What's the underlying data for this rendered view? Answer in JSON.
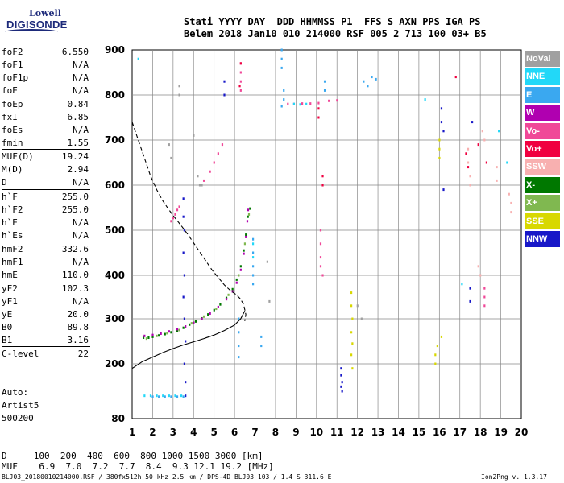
{
  "logo": {
    "line1": "Lowell",
    "line2": "DIGISONDE"
  },
  "header": {
    "row1": "Stati YYYY DAY  DDD HHMMSS P1  FFS S AXN PPS IGA PS",
    "row2": "Belem 2018 Jan10 010 214000 RSF 005 2 713 100 03+ B5"
  },
  "params_group1": [
    {
      "label": "foF2",
      "value": "6.550"
    },
    {
      "label": "foF1",
      "value": "N/A"
    },
    {
      "label": "foF1p",
      "value": "N/A"
    },
    {
      "label": "foE",
      "value": "N/A"
    },
    {
      "label": "foEp",
      "value": "0.84"
    },
    {
      "label": "fxI",
      "value": "6.85"
    },
    {
      "label": "foEs",
      "value": "N/A"
    },
    {
      "label": "fmin",
      "value": "1.55"
    }
  ],
  "params_group2": [
    {
      "label": "MUF(D)",
      "value": "19.24"
    },
    {
      "label": "M(D)",
      "value": "2.94"
    },
    {
      "label": "D",
      "value": "N/A"
    }
  ],
  "params_group3": [
    {
      "label": "h`F",
      "value": "255.0"
    },
    {
      "label": "h`F2",
      "value": "255.0"
    },
    {
      "label": "h`E",
      "value": "N/A"
    },
    {
      "label": "h`Es",
      "value": "N/A"
    }
  ],
  "params_group4": [
    {
      "label": "hmF2",
      "value": "332.6"
    },
    {
      "label": "hmF1",
      "value": "N/A"
    },
    {
      "label": "hmE",
      "value": "110.0"
    },
    {
      "label": "yF2",
      "value": "102.3"
    },
    {
      "label": "yF1",
      "value": "N/A"
    },
    {
      "label": "yE",
      "value": "20.0"
    },
    {
      "label": "B0",
      "value": "89.8"
    },
    {
      "label": "B1",
      "value": "3.16"
    }
  ],
  "clevel": {
    "label": "C-level",
    "value": "22"
  },
  "auto": {
    "line1": "Auto:",
    "line2": "Artist5",
    "line3": "500200"
  },
  "legend": [
    {
      "label": "NoVal",
      "color": "#a0a0a0"
    },
    {
      "label": "NNE",
      "color": "#22d8f8"
    },
    {
      "label": "E",
      "color": "#3aa8f0"
    },
    {
      "label": "W",
      "color": "#b000b0"
    },
    {
      "label": "Vo-",
      "color": "#f04898"
    },
    {
      "label": "Vo+",
      "color": "#f00040"
    },
    {
      "label": "SSW",
      "color": "#f8b0b0"
    },
    {
      "label": "X-",
      "color": "#007800"
    },
    {
      "label": "X+",
      "color": "#80b850"
    },
    {
      "label": "SSE",
      "color": "#d8d800"
    },
    {
      "label": "NNW",
      "color": "#1818c8"
    }
  ],
  "bottom_table": {
    "d_row": "D     100  200  400  600  800 1000 1500 3000 [km]",
    "muf_row": "MUF    6.9  7.0  7.2  7.7  8.4  9.3 12.1 19.2 [MHz]"
  },
  "footer": {
    "left": "BLJ03_20180010214000.RSF / 380fx512h 50 kHz 2.5 km / DPS-4D BLJ03 103 / 1.4 S 311.6 E",
    "right": "Ion2Png v. 1.3.17"
  },
  "chart_data": {
    "type": "scatter",
    "title": "",
    "xlabel": "",
    "ylabel": "",
    "xlim": [
      1,
      20
    ],
    "ylim": [
      80,
      900
    ],
    "x_ticks": [
      "1",
      "2",
      "3",
      "4",
      "5",
      "6",
      "7",
      "8",
      "9",
      "10",
      "11",
      "12",
      "13",
      "14",
      "15",
      "16",
      "17",
      "18",
      "19",
      "20"
    ],
    "y_ticks": [
      "80",
      "200",
      "300",
      "400",
      "500",
      "600",
      "700",
      "800",
      "900"
    ],
    "y_tick_values": [
      80,
      200,
      300,
      400,
      500,
      600,
      700,
      800,
      900
    ],
    "grid": true,
    "series": [
      {
        "color": "#007800",
        "points": [
          [
            1.55,
            258
          ],
          [
            1.8,
            258
          ],
          [
            2.0,
            260
          ],
          [
            2.3,
            263
          ],
          [
            2.6,
            266
          ],
          [
            2.9,
            270
          ],
          [
            3.2,
            274
          ],
          [
            3.5,
            280
          ],
          [
            3.8,
            287
          ],
          [
            4.1,
            294
          ],
          [
            4.4,
            301
          ],
          [
            4.7,
            310
          ],
          [
            5.0,
            320
          ],
          [
            5.3,
            333
          ],
          [
            5.6,
            348
          ],
          [
            5.9,
            368
          ],
          [
            6.1,
            390
          ],
          [
            6.3,
            420
          ],
          [
            6.45,
            455
          ],
          [
            6.55,
            490
          ],
          [
            6.65,
            530
          ],
          [
            6.75,
            548
          ]
        ]
      },
      {
        "color": "#b000b0",
        "points": [
          [
            1.6,
            262
          ],
          [
            2.0,
            264
          ],
          [
            2.4,
            267
          ],
          [
            2.8,
            272
          ],
          [
            3.2,
            277
          ],
          [
            3.6,
            283
          ],
          [
            4.0,
            291
          ],
          [
            4.4,
            300
          ],
          [
            4.8,
            312
          ],
          [
            5.2,
            327
          ],
          [
            5.6,
            345
          ],
          [
            5.9,
            363
          ],
          [
            6.1,
            383
          ],
          [
            6.3,
            412
          ],
          [
            6.45,
            448
          ],
          [
            6.55,
            485
          ],
          [
            6.62,
            520
          ],
          [
            6.66,
            545
          ]
        ]
      },
      {
        "color": "#80b850",
        "points": [
          [
            1.7,
            256
          ],
          [
            2.2,
            262
          ],
          [
            2.7,
            268
          ],
          [
            3.3,
            275
          ],
          [
            3.9,
            290
          ],
          [
            4.5,
            305
          ],
          [
            5.1,
            323
          ],
          [
            5.7,
            355
          ],
          [
            6.2,
            400
          ],
          [
            6.5,
            470
          ],
          [
            6.7,
            535
          ]
        ]
      },
      {
        "color": "#f04898",
        "points": [
          [
            2.9,
            520
          ],
          [
            3.0,
            527
          ],
          [
            3.1,
            535
          ],
          [
            3.2,
            545
          ],
          [
            3.3,
            552
          ],
          [
            4.5,
            610
          ],
          [
            4.8,
            630
          ],
          [
            5.0,
            650
          ],
          [
            5.2,
            670
          ],
          [
            5.4,
            690
          ],
          [
            8.6,
            780
          ],
          [
            8.9,
            780
          ],
          [
            9.3,
            781
          ],
          [
            9.7,
            781
          ],
          [
            10.1,
            782
          ],
          [
            10.6,
            787
          ],
          [
            11.0,
            788
          ],
          [
            6.3,
            870
          ],
          [
            6.3,
            850
          ],
          [
            6.3,
            830
          ],
          [
            6.3,
            810
          ],
          [
            10.2,
            500
          ],
          [
            10.2,
            470
          ],
          [
            10.2,
            440
          ],
          [
            10.2,
            420
          ],
          [
            10.3,
            400
          ],
          [
            18.2,
            370
          ],
          [
            18.2,
            350
          ],
          [
            18.2,
            330
          ]
        ]
      },
      {
        "color": "#3aa8f0",
        "points": [
          [
            2.0,
            128
          ],
          [
            2.3,
            128
          ],
          [
            2.6,
            128
          ],
          [
            2.9,
            128
          ],
          [
            3.2,
            128
          ],
          [
            3.5,
            128
          ],
          [
            6.9,
            480
          ],
          [
            6.9,
            450
          ],
          [
            6.9,
            420
          ],
          [
            6.9,
            400
          ],
          [
            6.9,
            380
          ],
          [
            6.2,
            300
          ],
          [
            6.2,
            270
          ],
          [
            6.2,
            240
          ],
          [
            6.2,
            215
          ],
          [
            7.3,
            240
          ],
          [
            7.3,
            260
          ],
          [
            8.3,
            900
          ],
          [
            8.3,
            880
          ],
          [
            8.3,
            860
          ],
          [
            8.4,
            810
          ],
          [
            8.4,
            790
          ],
          [
            8.3,
            775
          ],
          [
            12.3,
            830
          ],
          [
            12.5,
            820
          ],
          [
            12.7,
            840
          ],
          [
            12.9,
            835
          ],
          [
            10.4,
            830
          ],
          [
            10.4,
            810
          ]
        ]
      },
      {
        "color": "#22d8f8",
        "points": [
          [
            1.3,
            880
          ],
          [
            1.6,
            130
          ],
          [
            1.9,
            130
          ],
          [
            2.2,
            130
          ],
          [
            2.5,
            130
          ],
          [
            2.8,
            130
          ],
          [
            3.1,
            130
          ],
          [
            3.4,
            130
          ],
          [
            8.9,
            780
          ],
          [
            9.2,
            779
          ],
          [
            9.5,
            780
          ],
          [
            6.9,
            470
          ],
          [
            6.9,
            440
          ],
          [
            17.1,
            380
          ],
          [
            18.9,
            720
          ],
          [
            19.3,
            650
          ],
          [
            15.3,
            790
          ]
        ]
      },
      {
        "color": "#1818c8",
        "points": [
          [
            3.5,
            570
          ],
          [
            3.5,
            530
          ],
          [
            3.55,
            500
          ],
          [
            3.5,
            450
          ],
          [
            3.55,
            400
          ],
          [
            3.5,
            350
          ],
          [
            3.55,
            300
          ],
          [
            3.6,
            250
          ],
          [
            3.55,
            200
          ],
          [
            3.6,
            160
          ],
          [
            3.6,
            130
          ],
          [
            5.5,
            830
          ],
          [
            5.5,
            800
          ],
          [
            11.2,
            190
          ],
          [
            11.2,
            175
          ],
          [
            11.25,
            160
          ],
          [
            11.2,
            150
          ],
          [
            11.25,
            140
          ],
          [
            16.1,
            770
          ],
          [
            16.1,
            740
          ],
          [
            16.2,
            720
          ],
          [
            17.5,
            370
          ],
          [
            17.5,
            340
          ],
          [
            16.2,
            590
          ],
          [
            17.6,
            740
          ]
        ]
      },
      {
        "color": "#f00040",
        "points": [
          [
            6.3,
            870
          ],
          [
            6.25,
            820
          ],
          [
            10.3,
            620
          ],
          [
            10.3,
            600
          ],
          [
            16.8,
            840
          ],
          [
            17.3,
            670
          ],
          [
            17.4,
            640
          ],
          [
            17.9,
            690
          ],
          [
            18.3,
            650
          ],
          [
            10.1,
            770
          ],
          [
            10.1,
            750
          ]
        ]
      },
      {
        "color": "#d8d800",
        "points": [
          [
            11.7,
            360
          ],
          [
            11.7,
            330
          ],
          [
            11.75,
            300
          ],
          [
            11.7,
            270
          ],
          [
            11.75,
            245
          ],
          [
            11.7,
            220
          ],
          [
            11.75,
            190
          ],
          [
            16.0,
            700
          ],
          [
            16.0,
            680
          ],
          [
            16.0,
            660
          ],
          [
            16.1,
            260
          ],
          [
            15.9,
            240
          ],
          [
            15.8,
            220
          ],
          [
            15.8,
            200
          ]
        ]
      },
      {
        "color": "#f8b0b0",
        "points": [
          [
            17.4,
            680
          ],
          [
            17.4,
            650
          ],
          [
            17.5,
            620
          ],
          [
            17.5,
            600
          ],
          [
            18.1,
            720
          ],
          [
            18.2,
            700
          ],
          [
            18.8,
            640
          ],
          [
            18.8,
            610
          ],
          [
            19.4,
            580
          ],
          [
            19.5,
            560
          ],
          [
            19.5,
            540
          ],
          [
            17.9,
            420
          ],
          [
            18.0,
            400
          ]
        ]
      },
      {
        "color": "#a0a0a0",
        "points": [
          [
            2.8,
            690
          ],
          [
            2.9,
            660
          ],
          [
            3.3,
            820
          ],
          [
            3.3,
            800
          ],
          [
            4.2,
            620
          ],
          [
            4.3,
            600
          ],
          [
            4.4,
            600
          ],
          [
            4.0,
            710
          ],
          [
            7.6,
            430
          ],
          [
            7.7,
            340
          ],
          [
            12.0,
            330
          ],
          [
            12.2,
            300
          ]
        ]
      }
    ],
    "curves": [
      {
        "style": "solid",
        "points": [
          [
            1.0,
            190
          ],
          [
            1.5,
            205
          ],
          [
            2.0,
            215
          ],
          [
            2.5,
            225
          ],
          [
            3.0,
            234
          ],
          [
            3.5,
            242
          ],
          [
            4.0,
            249
          ],
          [
            4.5,
            256
          ],
          [
            5.0,
            264
          ],
          [
            5.5,
            274
          ],
          [
            6.0,
            286
          ],
          [
            6.3,
            300
          ],
          [
            6.5,
            318
          ]
        ]
      },
      {
        "style": "dashed",
        "points": [
          [
            1.0,
            740
          ],
          [
            1.3,
            700
          ],
          [
            1.6,
            660
          ],
          [
            1.9,
            620
          ],
          [
            2.2,
            590
          ],
          [
            2.5,
            565
          ],
          [
            2.8,
            545
          ],
          [
            3.1,
            527
          ],
          [
            3.4,
            510
          ],
          [
            3.7,
            492
          ],
          [
            4.0,
            472
          ],
          [
            4.3,
            452
          ],
          [
            4.6,
            432
          ],
          [
            4.9,
            412
          ],
          [
            5.2,
            395
          ],
          [
            5.5,
            378
          ],
          [
            5.8,
            365
          ],
          [
            6.1,
            355
          ],
          [
            6.3,
            345
          ],
          [
            6.45,
            332
          ],
          [
            6.55,
            310
          ],
          [
            6.5,
            295
          ]
        ]
      }
    ]
  }
}
